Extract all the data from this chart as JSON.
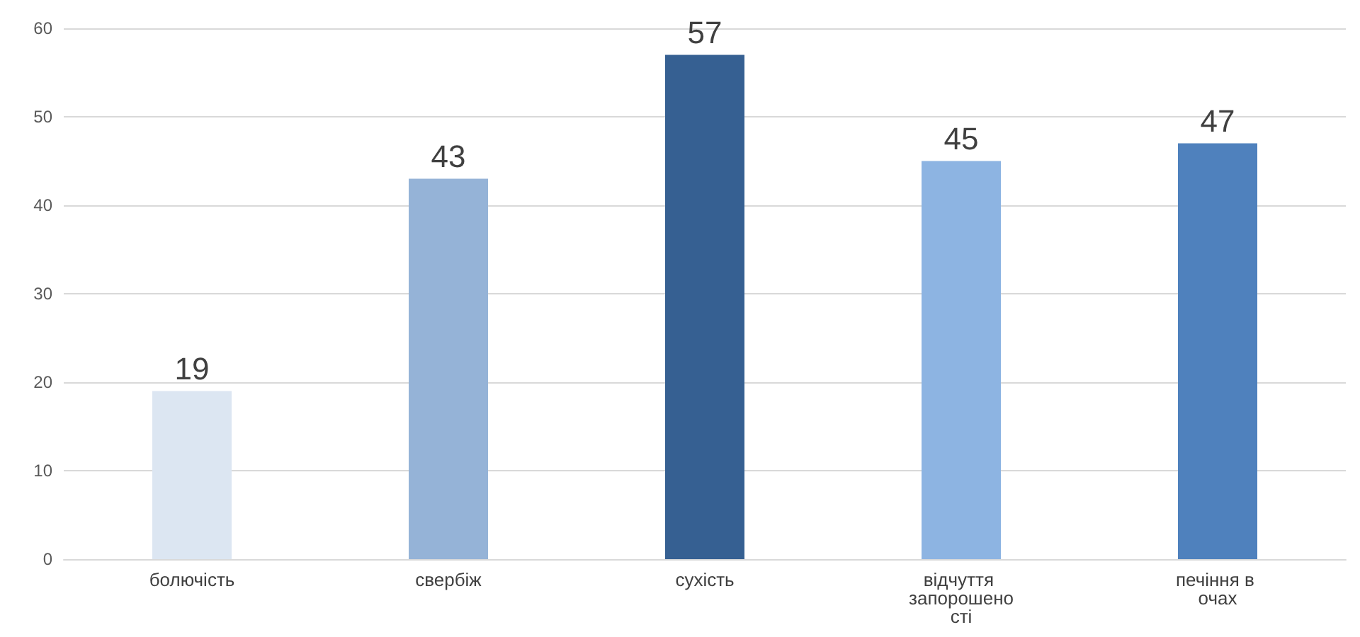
{
  "chart_data": {
    "type": "bar",
    "categories": [
      "болючість",
      "свербіж",
      "сухість",
      "відчуття запорошеності",
      "печіння в очах"
    ],
    "values": [
      19,
      43,
      57,
      45,
      47
    ],
    "colors": [
      "#dce6f2",
      "#95b3d7",
      "#366092",
      "#8db4e2",
      "#4f81bd"
    ],
    "ylim": [
      0,
      60
    ],
    "yticks": [
      0,
      10,
      20,
      30,
      40,
      50,
      60
    ],
    "grid": "y",
    "data_labels": true
  }
}
